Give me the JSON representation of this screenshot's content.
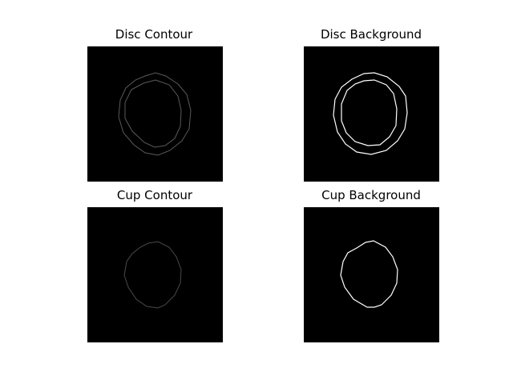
{
  "figure": {
    "background": "#ffffff",
    "panels": [
      {
        "title": "Disc Contour",
        "image_background": "#000000",
        "stroke": "#5a5a5a"
      },
      {
        "title": "Disc Background",
        "image_background": "#000000",
        "stroke": "#ffffff"
      },
      {
        "title": "Cup Contour",
        "image_background": "#000000",
        "stroke": "#4a4a4a"
      },
      {
        "title": "Cup Background",
        "image_background": "#000000",
        "stroke": "#ffffff"
      }
    ]
  }
}
